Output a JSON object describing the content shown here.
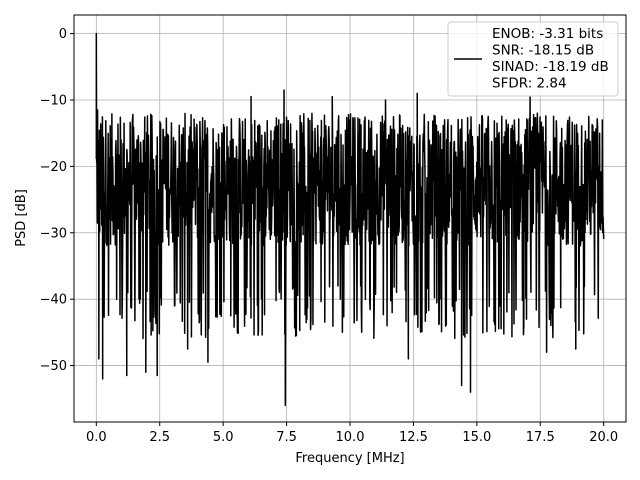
{
  "chart_data": {
    "type": "line",
    "title": "",
    "xlabel": "Frequency [MHz]",
    "ylabel": "PSD [dB]",
    "xlim": [
      -0.88,
      20.88
    ],
    "ylim": [
      -58.5,
      2.8
    ],
    "xticks": [
      0.0,
      2.5,
      5.0,
      7.5,
      10.0,
      12.5,
      15.0,
      17.5,
      20.0
    ],
    "xtick_labels": [
      "0.0",
      "2.5",
      "5.0",
      "7.5",
      "10.0",
      "12.5",
      "15.0",
      "17.5",
      "20.0"
    ],
    "yticks": [
      0,
      -10,
      -20,
      -30,
      -40,
      -50
    ],
    "ytick_labels": [
      "0",
      "−10",
      "−20",
      "−30",
      "−40",
      "−50"
    ],
    "grid": true,
    "legend_position": "top-right",
    "series": [
      {
        "name": "ENOB: -3.31 bits\nSNR: -18.15 dB\nSINAD: -18.19 dB\nSFDR: 2.84",
        "color": "#000000",
        "x_range": [
          0,
          20
        ],
        "noise_floor_db": [
          -32,
          -12
        ],
        "notable_points": [
          {
            "x": 0.0,
            "y": 0.0
          },
          {
            "x": 0.05,
            "y": -11.5
          },
          {
            "x": 0.1,
            "y": -49
          },
          {
            "x": 0.25,
            "y": -52
          },
          {
            "x": 1.2,
            "y": -51.5
          },
          {
            "x": 1.95,
            "y": -51
          },
          {
            "x": 2.4,
            "y": -51.5
          },
          {
            "x": 3.6,
            "y": -47.5
          },
          {
            "x": 4.4,
            "y": -49.5
          },
          {
            "x": 5.3,
            "y": -42.5
          },
          {
            "x": 6.1,
            "y": -9.5
          },
          {
            "x": 7.4,
            "y": -8.5
          },
          {
            "x": 7.45,
            "y": -56
          },
          {
            "x": 9.3,
            "y": -9.5
          },
          {
            "x": 11.4,
            "y": -10
          },
          {
            "x": 12.3,
            "y": -49
          },
          {
            "x": 12.65,
            "y": -9
          },
          {
            "x": 14.4,
            "y": -53
          },
          {
            "x": 14.75,
            "y": -54
          },
          {
            "x": 17.1,
            "y": -9.5
          },
          {
            "x": 17.75,
            "y": -48
          },
          {
            "x": 18.9,
            "y": -47.5
          }
        ]
      }
    ]
  }
}
